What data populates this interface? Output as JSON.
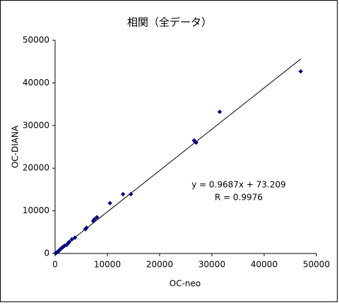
{
  "chart_data": {
    "type": "scatter",
    "title": "相関（全データ）",
    "x_label": "OC-neo",
    "y_label": "OC-DIANA",
    "series": [
      {
        "name": "OC-DIANA",
        "color": "#000080",
        "x": [
          47000,
          31500,
          26600,
          26800,
          27000,
          14500,
          13000,
          10500,
          8000,
          7500,
          7300,
          6000,
          5800,
          3800,
          3200,
          2700,
          2500,
          2200,
          1800,
          1500,
          1200,
          1000,
          800,
          600,
          400,
          200,
          100
        ],
        "values": [
          42700,
          33200,
          26500,
          26200,
          26000,
          13900,
          13900,
          11800,
          8500,
          8000,
          7600,
          6000,
          5700,
          3700,
          3300,
          2700,
          2400,
          2000,
          1800,
          1500,
          1200,
          1000,
          700,
          500,
          300,
          150,
          80
        ]
      }
    ],
    "trendline": {
      "equation": "y = 0.9687x + 73.209",
      "r_label": "R = 0.9976",
      "slope": 0.9687,
      "intercept": 73.209,
      "r": 0.9976
    },
    "xlim": [
      0,
      50000
    ],
    "xticks": [
      0,
      10000,
      20000,
      30000,
      40000,
      50000
    ],
    "ylim": [
      0,
      50000
    ],
    "yticks": [
      0,
      10000,
      20000,
      30000,
      40000,
      50000
    ],
    "grid": false
  }
}
